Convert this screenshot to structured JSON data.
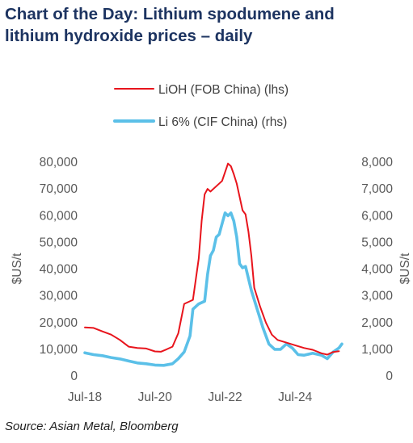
{
  "title_line1": "Chart of the Day: Lithium spodumene and",
  "title_line2": "lithium hydroxide prices – daily",
  "source": "Source: Asian Metal, Bloomberg",
  "chart_data": {
    "type": "line",
    "title": "Chart of the Day: Lithium spodumene and lithium hydroxide prices – daily",
    "xlabel": "",
    "ylabel_left": "$US/t",
    "ylabel_right": "$US/t",
    "ylim_left": [
      0,
      80000
    ],
    "ylim_right": [
      0,
      8000
    ],
    "yticks_left": [
      "0",
      "10,000",
      "20,000",
      "30,000",
      "40,000",
      "50,000",
      "60,000",
      "70,000",
      "80,000"
    ],
    "yticks_right": [
      "0",
      "1,000",
      "2,000",
      "3,000",
      "4,000",
      "5,000",
      "6,000",
      "7,000",
      "8,000"
    ],
    "xticks": [
      "Jul-18",
      "Jul-20",
      "Jul-22",
      "Jul-24"
    ],
    "xlim": [
      "2018-07",
      "2025-11"
    ],
    "grid": false,
    "legend_position": "top",
    "series": [
      {
        "name": "LiOH (FOB China) (lhs)",
        "axis": "left",
        "color": "#e8141c",
        "points": [
          [
            "2018-07",
            18200
          ],
          [
            "2018-10",
            18000
          ],
          [
            "2019-01",
            16700
          ],
          [
            "2019-04",
            15500
          ],
          [
            "2019-07",
            13500
          ],
          [
            "2019-10",
            11000
          ],
          [
            "2020-01",
            10500
          ],
          [
            "2020-04",
            10300
          ],
          [
            "2020-07",
            9200
          ],
          [
            "2020-09",
            9100
          ],
          [
            "2020-11",
            10000
          ],
          [
            "2021-01",
            11000
          ],
          [
            "2021-03",
            16000
          ],
          [
            "2021-05",
            27000
          ],
          [
            "2021-08",
            28500
          ],
          [
            "2021-10",
            44000
          ],
          [
            "2021-11",
            58000
          ],
          [
            "2021-12",
            68000
          ],
          [
            "2022-01",
            70000
          ],
          [
            "2022-02",
            69000
          ],
          [
            "2022-04",
            71000
          ],
          [
            "2022-06",
            73000
          ],
          [
            "2022-08",
            79500
          ],
          [
            "2022-09",
            78500
          ],
          [
            "2022-10",
            75500
          ],
          [
            "2022-11",
            72000
          ],
          [
            "2022-12",
            67000
          ],
          [
            "2023-01",
            62000
          ],
          [
            "2023-02",
            60500
          ],
          [
            "2023-03",
            54000
          ],
          [
            "2023-04",
            45000
          ],
          [
            "2023-05",
            33000
          ],
          [
            "2023-07",
            26000
          ],
          [
            "2023-09",
            20000
          ],
          [
            "2023-11",
            15500
          ],
          [
            "2024-01",
            13500
          ],
          [
            "2024-04",
            12500
          ],
          [
            "2024-07",
            11500
          ],
          [
            "2024-10",
            10500
          ],
          [
            "2025-01",
            9800
          ],
          [
            "2025-04",
            8500
          ],
          [
            "2025-06",
            8000
          ],
          [
            "2025-08",
            9000
          ],
          [
            "2025-10",
            9300
          ]
        ]
      },
      {
        "name": "Li 6% (CIF China) (rhs)",
        "axis": "right",
        "color": "#5bc0e8",
        "points": [
          [
            "2018-07",
            870
          ],
          [
            "2018-10",
            800
          ],
          [
            "2019-01",
            760
          ],
          [
            "2019-04",
            690
          ],
          [
            "2019-07",
            640
          ],
          [
            "2019-10",
            560
          ],
          [
            "2020-01",
            490
          ],
          [
            "2020-04",
            460
          ],
          [
            "2020-07",
            410
          ],
          [
            "2020-10",
            400
          ],
          [
            "2021-01",
            460
          ],
          [
            "2021-03",
            650
          ],
          [
            "2021-05",
            900
          ],
          [
            "2021-07",
            1500
          ],
          [
            "2021-08",
            2500
          ],
          [
            "2021-10",
            2700
          ],
          [
            "2021-12",
            2800
          ],
          [
            "2022-01",
            3800
          ],
          [
            "2022-02",
            4500
          ],
          [
            "2022-03",
            4700
          ],
          [
            "2022-04",
            5200
          ],
          [
            "2022-05",
            5300
          ],
          [
            "2022-06",
            5700
          ],
          [
            "2022-07",
            6100
          ],
          [
            "2022-08",
            6000
          ],
          [
            "2022-09",
            6100
          ],
          [
            "2022-10",
            5800
          ],
          [
            "2022-11",
            5200
          ],
          [
            "2022-12",
            4200
          ],
          [
            "2023-01",
            4050
          ],
          [
            "2023-02",
            4100
          ],
          [
            "2023-04",
            3200
          ],
          [
            "2023-06",
            2500
          ],
          [
            "2023-08",
            1800
          ],
          [
            "2023-10",
            1200
          ],
          [
            "2023-12",
            1000
          ],
          [
            "2024-02",
            1000
          ],
          [
            "2024-04",
            1200
          ],
          [
            "2024-06",
            1050
          ],
          [
            "2024-08",
            800
          ],
          [
            "2024-10",
            780
          ],
          [
            "2025-01",
            850
          ],
          [
            "2025-04",
            780
          ],
          [
            "2025-06",
            650
          ],
          [
            "2025-08",
            900
          ],
          [
            "2025-10",
            1050
          ],
          [
            "2025-11",
            1200
          ]
        ]
      }
    ]
  }
}
